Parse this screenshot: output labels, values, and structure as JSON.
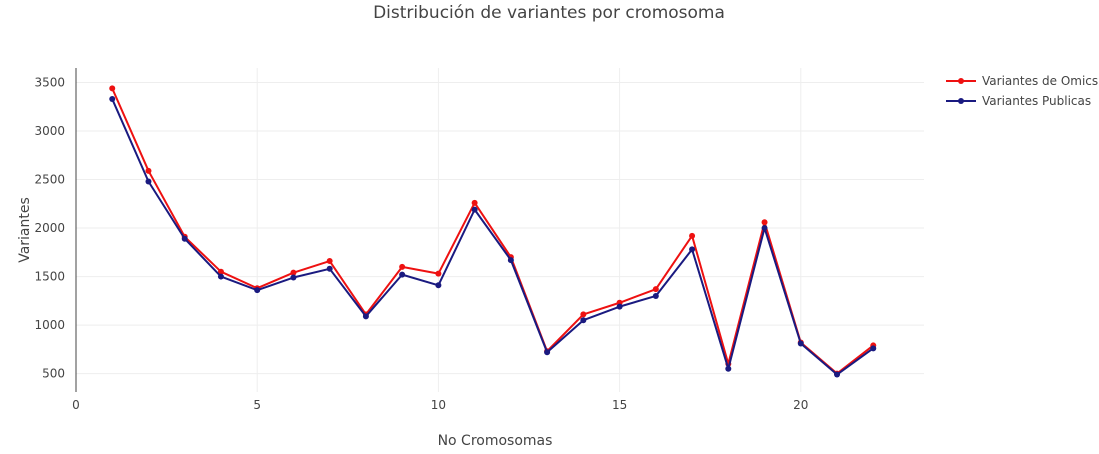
{
  "chart_data": {
    "type": "line",
    "title": "Distribución de variantes por cromosoma",
    "xlabel": "No Cromosomas",
    "ylabel": "Variantes",
    "xlim": [
      0,
      23.4
    ],
    "ylim": [
      310,
      3650
    ],
    "x_ticks": [
      0,
      5,
      10,
      15,
      20
    ],
    "y_ticks": [
      500,
      1000,
      1500,
      2000,
      2500,
      3000,
      3500
    ],
    "grid": true,
    "legend_position": "top-right",
    "x": [
      1,
      2,
      3,
      4,
      5,
      6,
      7,
      8,
      9,
      10,
      11,
      12,
      13,
      14,
      15,
      16,
      17,
      18,
      19,
      20,
      21,
      22
    ],
    "series": [
      {
        "name": "Variantes de Omics",
        "color": "#ee1111",
        "values": [
          3440,
          2590,
          1910,
          1550,
          1380,
          1540,
          1660,
          1110,
          1600,
          1530,
          2260,
          1700,
          730,
          1110,
          1230,
          1370,
          1920,
          600,
          2060,
          820,
          500,
          790
        ]
      },
      {
        "name": "Variantes Publicas",
        "color": "#1a1a80",
        "values": [
          3330,
          2480,
          1890,
          1500,
          1360,
          1490,
          1580,
          1090,
          1520,
          1410,
          2190,
          1670,
          720,
          1050,
          1190,
          1300,
          1780,
          550,
          2000,
          810,
          490,
          760
        ]
      }
    ]
  }
}
